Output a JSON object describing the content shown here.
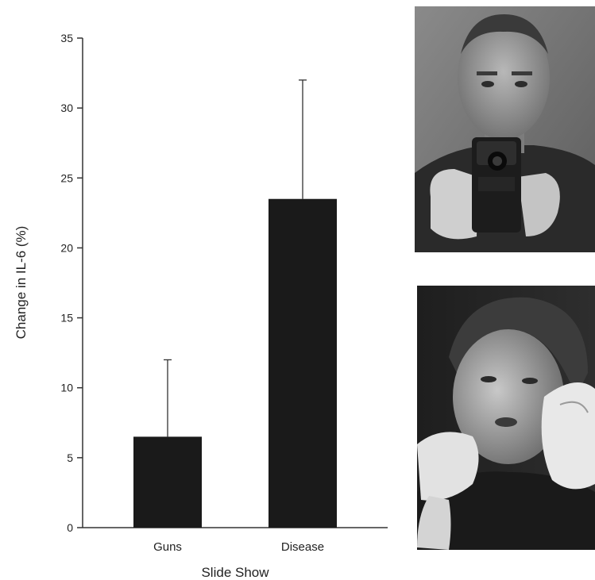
{
  "chart_data": {
    "type": "bar",
    "title": "",
    "xlabel": "Slide Show",
    "ylabel": "Change in IL-6 (%)",
    "categories": [
      "Guns",
      "Disease"
    ],
    "values": [
      6.5,
      23.5
    ],
    "error_bars": [
      5.5,
      8.5
    ],
    "ylim": [
      0,
      35
    ],
    "yticks": [
      0,
      5,
      10,
      15,
      20,
      25,
      30,
      35
    ],
    "bar_color": "#1a1a1a",
    "grid": false,
    "legend": "none"
  },
  "images": {
    "top": "photo of a man aiming a handgun at the viewer",
    "bottom": "photo of a woman coughing and holding a tissue"
  }
}
